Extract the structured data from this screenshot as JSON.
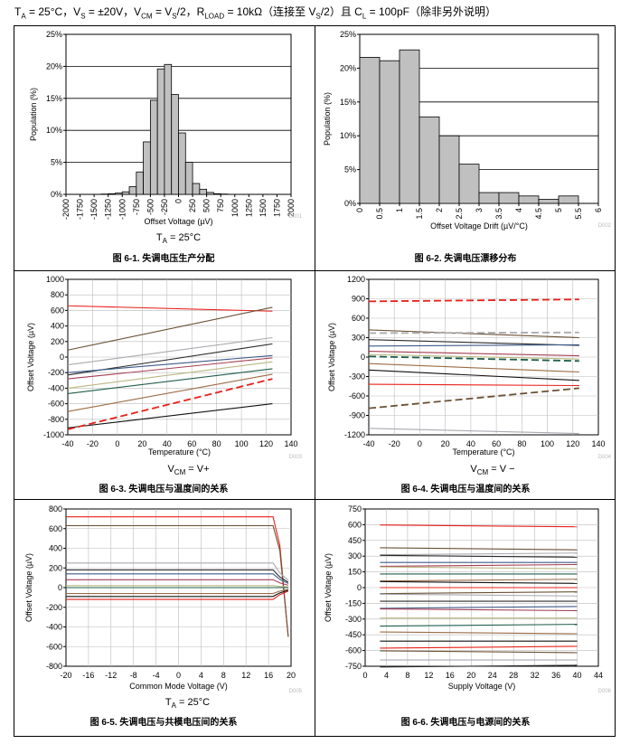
{
  "header": {
    "conditions_html": "T<sub>A</sub> = 25°C，V<sub>S</sub> = ±20V，V<sub>CM</sub> = V<sub>S</sub>/2，R<sub>LOAD</sub> = 10kΩ（连接至 V<sub>S</sub>/2）且 C<sub>L</sub> = 100pF（除非另外说明）"
  },
  "colors": {
    "bar_fill": "#c0c0c0",
    "bar_stroke": "#000000",
    "grid": "#000000",
    "series_palette": [
      "#e8201a",
      "#6b5134",
      "#a9aab0",
      "#2a2a2a",
      "#3d5a8a",
      "#a43d52",
      "#b9b780",
      "#1f5e4c",
      "#9b6c45",
      "#111111"
    ]
  },
  "chart_data": [
    {
      "id": "fig6-1",
      "type": "bar",
      "figure_caption": "图 6-1. 失调电压生产分配",
      "code": "D001",
      "xlabel": "Offset Voltage (µV)",
      "ylabel": "Population (%)",
      "note": "TA = 25°C",
      "x_ticks": [
        "-2000",
        "-1750",
        "-1500",
        "-1250",
        "-1000",
        "-750",
        "-500",
        "-250",
        "0",
        "250",
        "500",
        "750",
        "1000",
        "1250",
        "1500",
        "1750",
        "2000"
      ],
      "y_ticks": [
        "0%",
        "5%",
        "10%",
        "15%",
        "20%",
        "25%"
      ],
      "ylim": [
        0,
        25
      ],
      "bin_width": 125,
      "bin_starts": [
        -1375,
        -1250,
        -1125,
        -1000,
        -875,
        -750,
        -625,
        -500,
        -375,
        -250,
        -125,
        0,
        125,
        250,
        375,
        500,
        625,
        750,
        875,
        1000,
        1125,
        1250,
        1375
      ],
      "values": [
        0.05,
        0.1,
        0.2,
        0.4,
        1.2,
        3.5,
        8.2,
        14.7,
        19.6,
        20.3,
        15.6,
        9.6,
        5.0,
        1.7,
        0.8,
        0.3,
        0.1,
        0.05,
        0,
        0,
        0,
        0,
        0
      ]
    },
    {
      "id": "fig6-2",
      "type": "bar",
      "figure_caption": "图 6-2. 失调电压漂移分布",
      "code": "D002",
      "xlabel": "Offset Voltage Drift (µV/°C)",
      "ylabel": "Population (%)",
      "x_ticks": [
        "0",
        "0.5",
        "1",
        "1.5",
        "2",
        "2.5",
        "3",
        "3.5",
        "4",
        "4.5",
        "5",
        "5.5",
        "6"
      ],
      "y_ticks": [
        "0%",
        "5%",
        "10%",
        "15%",
        "20%",
        "25%"
      ],
      "ylim": [
        0,
        25
      ],
      "bin_width": 0.5,
      "bin_starts": [
        0,
        0.5,
        1,
        1.5,
        2,
        2.5,
        3,
        3.5,
        4,
        4.5,
        5
      ],
      "values": [
        21.6,
        21.1,
        22.7,
        12.8,
        10.0,
        5.8,
        1.6,
        1.6,
        1.1,
        0.6,
        1.1
      ]
    },
    {
      "id": "fig6-3",
      "type": "line",
      "figure_caption": "图 6-3. 失调电压与温度间的关系",
      "code": "D003",
      "xlabel": "Temperature (°C)",
      "ylabel": "Offset Voltage (µV)",
      "note": "VCM = V+",
      "x_ticks": [
        "-40",
        "-20",
        "0",
        "20",
        "40",
        "60",
        "80",
        "100",
        "120",
        "140"
      ],
      "y_ticks": [
        "-1000",
        "-800",
        "-600",
        "-400",
        "-200",
        "0",
        "200",
        "400",
        "600",
        "800",
        "1000"
      ],
      "xlim": [
        -40,
        140
      ],
      "ylim": [
        -1000,
        1000
      ],
      "x": [
        -40,
        125
      ],
      "series": [
        {
          "values": [
            660,
            590
          ]
        },
        {
          "values": [
            90,
            640
          ]
        },
        {
          "values": [
            -100,
            250
          ]
        },
        {
          "values": [
            -230,
            170
          ]
        },
        {
          "values": [
            -200,
            20
          ]
        },
        {
          "values": [
            -280,
            -10
          ]
        },
        {
          "values": [
            -400,
            -60
          ]
        },
        {
          "values": [
            -470,
            -150
          ]
        },
        {
          "values": [
            -700,
            -220
          ]
        },
        {
          "values": [
            -910,
            -600
          ]
        },
        {
          "values": [
            -930,
            -280
          ],
          "dashed": true
        }
      ]
    },
    {
      "id": "fig6-4",
      "type": "line",
      "figure_caption": "图 6-4. 失调电压与温度间的关系",
      "code": "D004",
      "xlabel": "Temperature (°C)",
      "ylabel": "Offset Voltage (µV)",
      "note": "VCM = V −",
      "x_ticks": [
        "-40",
        "-20",
        "0",
        "20",
        "40",
        "60",
        "80",
        "100",
        "120",
        "140"
      ],
      "y_ticks": [
        "-1200",
        "-900",
        "-600",
        "-300",
        "0",
        "300",
        "600",
        "900",
        "1200"
      ],
      "xlim": [
        -40,
        140
      ],
      "ylim": [
        -1200,
        1200
      ],
      "x": [
        -40,
        125
      ],
      "series": [
        {
          "values": [
            860,
            890
          ],
          "dashed": true
        },
        {
          "values": [
            420,
            300
          ]
        },
        {
          "values": [
            370,
            380
          ],
          "dashed": true
        },
        {
          "values": [
            270,
            180
          ]
        },
        {
          "values": [
            170,
            190
          ]
        },
        {
          "values": [
            90,
            20
          ]
        },
        {
          "values": [
            40,
            -30
          ]
        },
        {
          "values": [
            10,
            -60
          ],
          "dashed": true
        },
        {
          "values": [
            -100,
            -230
          ]
        },
        {
          "values": [
            -200,
            -360
          ]
        },
        {
          "values": [
            -420,
            -440
          ]
        },
        {
          "values": [
            -790,
            -480
          ],
          "dashed": true
        },
        {
          "values": [
            -1100,
            -1180
          ]
        }
      ]
    },
    {
      "id": "fig6-5",
      "type": "line",
      "figure_caption": "图 6-5. 失调电压与共模电压间的关系",
      "code": "D005",
      "xlabel": "Common Mode Voltage (V)",
      "ylabel": "Offset Voltage (µV)",
      "note": "TA = 25°C",
      "x_ticks": [
        "-20",
        "-16",
        "-12",
        "-8",
        "-4",
        "0",
        "4",
        "8",
        "12",
        "16",
        "20"
      ],
      "y_ticks": [
        "-800",
        "-600",
        "-400",
        "-200",
        "0",
        "200",
        "400",
        "600",
        "800"
      ],
      "xlim": [
        -20,
        20
      ],
      "ylim": [
        -800,
        800
      ],
      "x": [
        -20,
        16.8
      ],
      "series": [
        {
          "values": [
            720,
            720
          ]
        },
        {
          "values": [
            630,
            630
          ]
        },
        {
          "values": [
            250,
            250
          ]
        },
        {
          "values": [
            180,
            180
          ]
        },
        {
          "values": [
            140,
            140
          ]
        },
        {
          "values": [
            80,
            80
          ]
        },
        {
          "values": [
            20,
            20
          ]
        },
        {
          "values": [
            0,
            0
          ]
        },
        {
          "values": [
            -60,
            -60
          ]
        },
        {
          "values": [
            -90,
            -90
          ]
        },
        {
          "values": [
            -120,
            -120
          ]
        }
      ]
    },
    {
      "id": "fig6-6",
      "type": "line",
      "figure_caption": "图 6-6. 失调电压与电源间的关系",
      "code": "D006",
      "xlabel": "Supply Voltage (V)",
      "ylabel": "Offset Voltage (µV)",
      "x_ticks": [
        "0",
        "4",
        "8",
        "12",
        "16",
        "20",
        "24",
        "28",
        "32",
        "36",
        "40",
        "44"
      ],
      "y_ticks": [
        "-750",
        "-600",
        "-450",
        "-300",
        "-150",
        "0",
        "150",
        "300",
        "450",
        "600",
        "750"
      ],
      "xlim": [
        0,
        44
      ],
      "ylim": [
        -750,
        750
      ],
      "x": [
        2.8,
        40
      ],
      "series": [
        {
          "values": [
            580,
            580
          ]
        },
        {
          "values": [
            380,
            360
          ]
        },
        {
          "values": [
            330,
            330
          ]
        },
        {
          "values": [
            290,
            290
          ]
        },
        {
          "values": [
            240,
            240
          ]
        },
        {
          "values": [
            220,
            220
          ]
        },
        {
          "values": [
            180,
            180
          ]
        },
        {
          "values": [
            130,
            130
          ]
        },
        {
          "values": [
            80,
            80
          ]
        },
        {
          "values": [
            40,
            40
          ]
        },
        {
          "values": [
            0,
            0
          ]
        },
        {
          "values": [
            -40,
            -40
          ]
        },
        {
          "values": [
            -80,
            -80
          ]
        },
        {
          "values": [
            -130,
            -130
          ]
        },
        {
          "values": [
            -180,
            -180
          ]
        },
        {
          "values": [
            -220,
            -220
          ]
        },
        {
          "values": [
            -290,
            -290
          ]
        },
        {
          "values": [
            -350,
            -350
          ]
        },
        {
          "values": [
            -440,
            -440
          ]
        },
        {
          "values": [
            -510,
            -510
          ]
        },
        {
          "values": [
            -560,
            -560
          ]
        },
        {
          "values": [
            -620,
            -620
          ]
        },
        {
          "values": [
            -690,
            -690
          ]
        },
        {
          "values": [
            -740,
            -740
          ]
        }
      ]
    }
  ]
}
